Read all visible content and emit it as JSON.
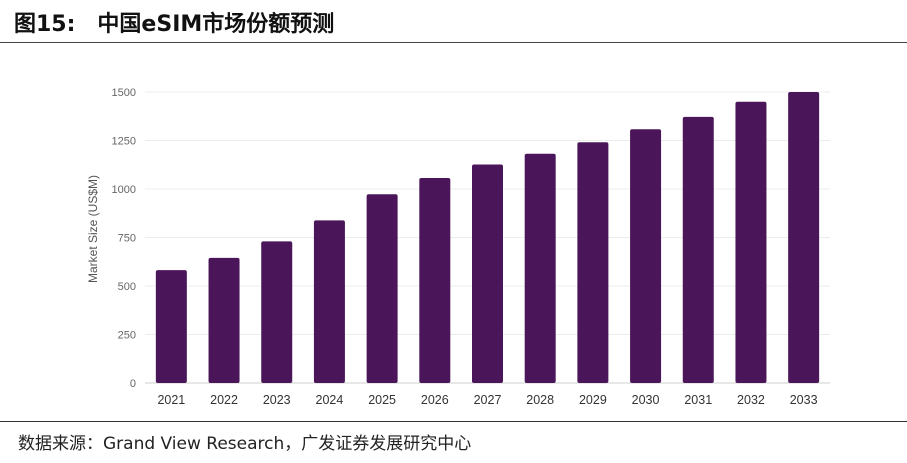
{
  "figure": {
    "number": "图15:",
    "title": "中国eSIM市场份额预测"
  },
  "source": {
    "text": "数据来源：Grand View Research，广发证券发展研究中心"
  },
  "chart_data": {
    "type": "bar",
    "categories": [
      "2021",
      "2022",
      "2023",
      "2024",
      "2025",
      "2026",
      "2027",
      "2028",
      "2029",
      "2030",
      "2031",
      "2032",
      "2033"
    ],
    "values": [
      582,
      645,
      730,
      838,
      973,
      1057,
      1126,
      1182,
      1241,
      1308,
      1372,
      1450,
      1500
    ],
    "ylabel": "Market Size (US$M)",
    "xlabel": "",
    "ylim": [
      0,
      1500
    ],
    "yticks": [
      0,
      250,
      500,
      750,
      1000,
      1250,
      1500
    ],
    "bar_color": "#4a1659",
    "grid": true
  }
}
